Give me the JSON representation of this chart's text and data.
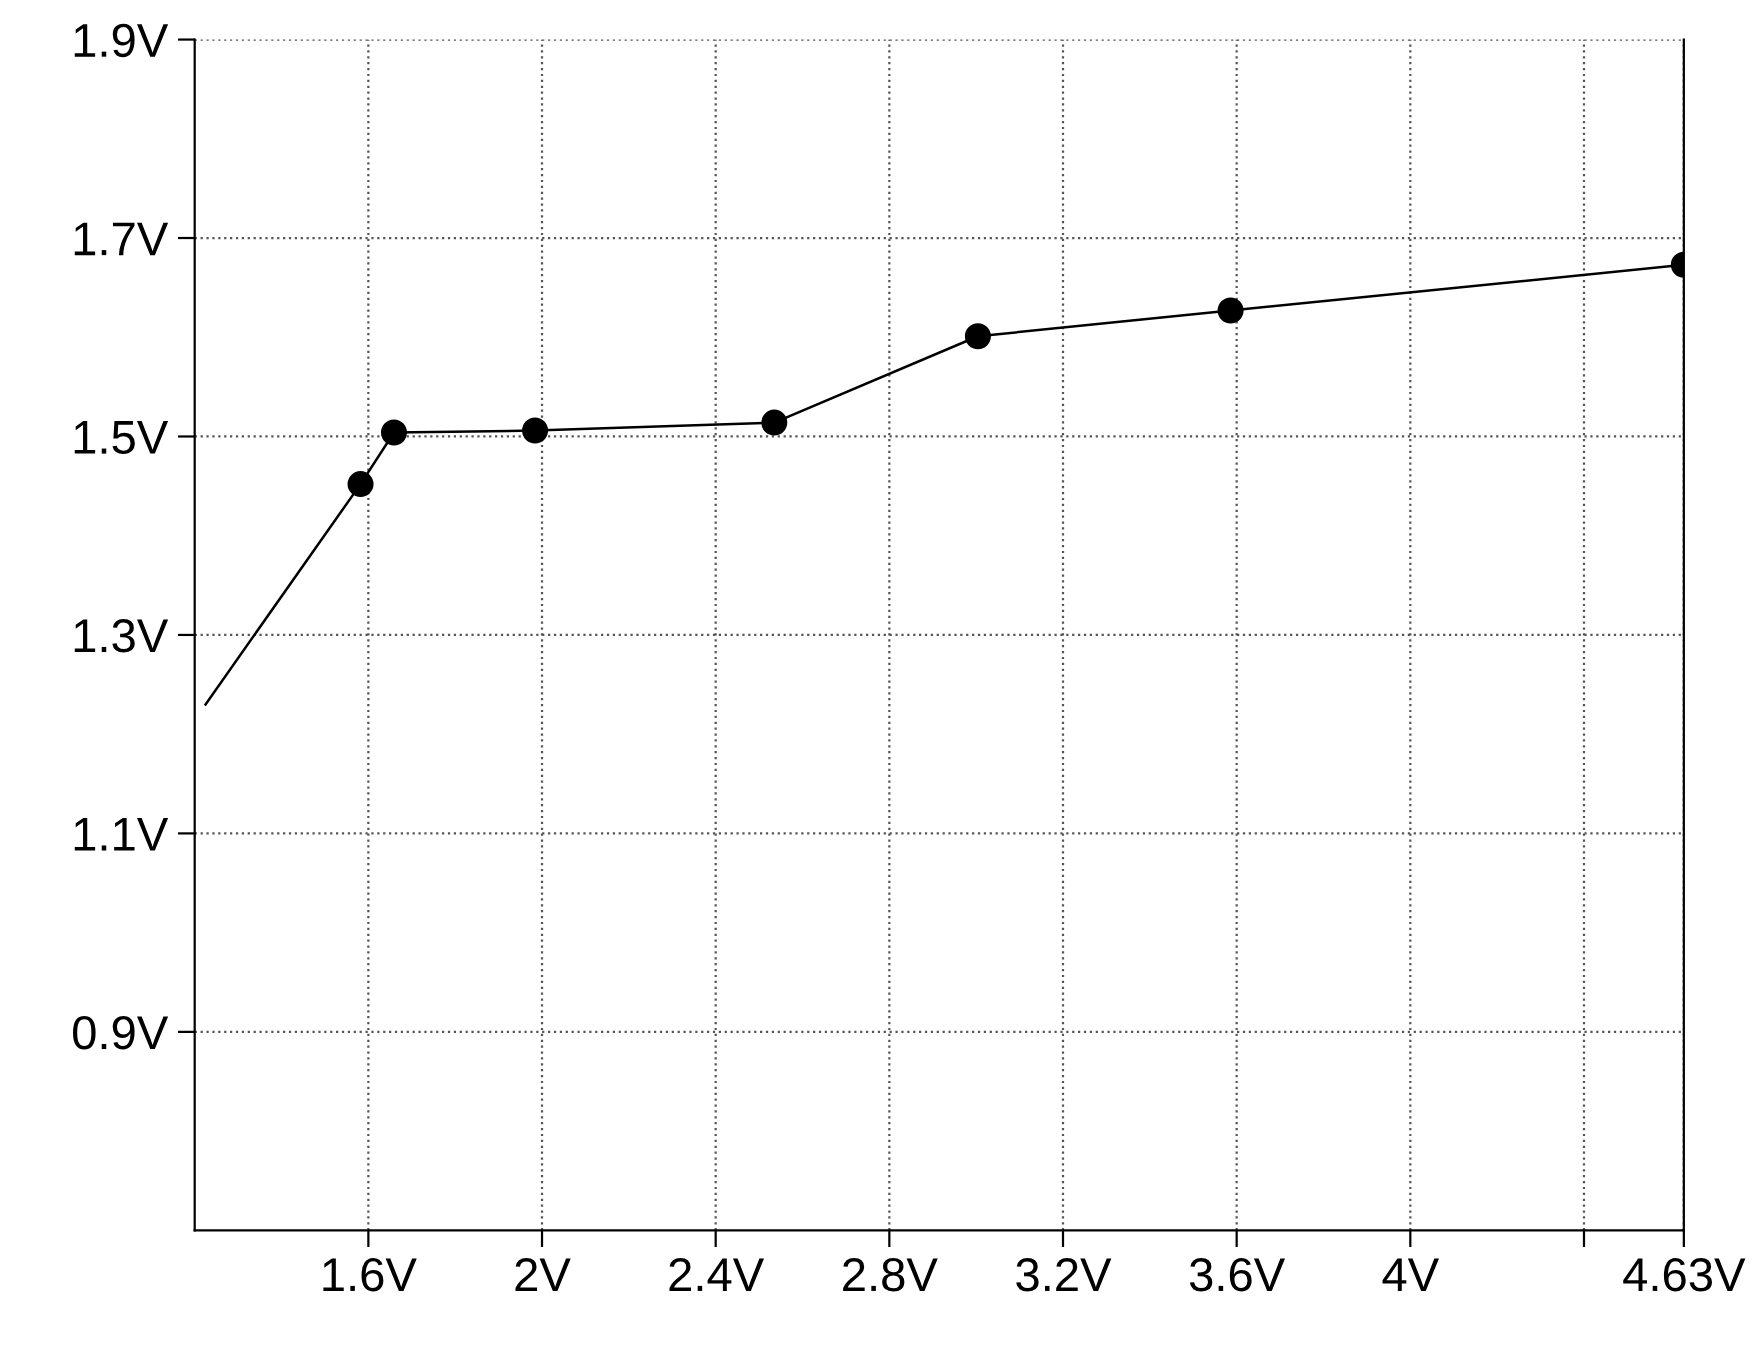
{
  "chart_data": {
    "type": "line",
    "series": [
      {
        "color": "#000000",
        "marker": "none",
        "x": [
          1.225,
          1.582,
          1.659,
          1.984,
          2.535,
          3.004,
          3.586,
          4.63
        ],
        "values": [
          1.23,
          1.452,
          1.504,
          1.506,
          1.514,
          1.601,
          1.627,
          1.673
        ]
      },
      {
        "type": "scatter",
        "color": "#000000",
        "marker": "circle",
        "x": [
          1.582,
          1.659,
          1.984,
          2.535,
          3.004,
          3.586,
          4.63
        ],
        "values": [
          1.452,
          1.504,
          1.506,
          1.514,
          1.601,
          1.627,
          1.673
        ]
      }
    ],
    "xlim": [
      1.2,
      4.63
    ],
    "xticks": [
      {
        "value": 1.6,
        "label": "1.6V"
      },
      {
        "value": 2,
        "label": "2V"
      },
      {
        "value": 2.4,
        "label": "2.4V"
      },
      {
        "value": 2.8,
        "label": "2.8V"
      },
      {
        "value": 3.2,
        "label": "3.2V"
      },
      {
        "value": 3.6,
        "label": "3.6V"
      },
      {
        "value": 4,
        "label": "4V"
      },
      {
        "value": 4.4,
        "label": null
      },
      {
        "value": 4.63,
        "label": "4.63V"
      }
    ],
    "ylim": [
      0.7,
      1.9
    ],
    "yticks": [
      {
        "value": 0.9,
        "label": "0.9V"
      },
      {
        "value": 1.1,
        "label": "1.1V"
      },
      {
        "value": 1.3,
        "label": "1.3V"
      },
      {
        "value": 1.5,
        "label": "1.5V"
      },
      {
        "value": 1.7,
        "label": "1.7V"
      },
      {
        "value": 1.9,
        "label": "1.9V"
      }
    ],
    "grid": true,
    "line_style": "solid"
  }
}
